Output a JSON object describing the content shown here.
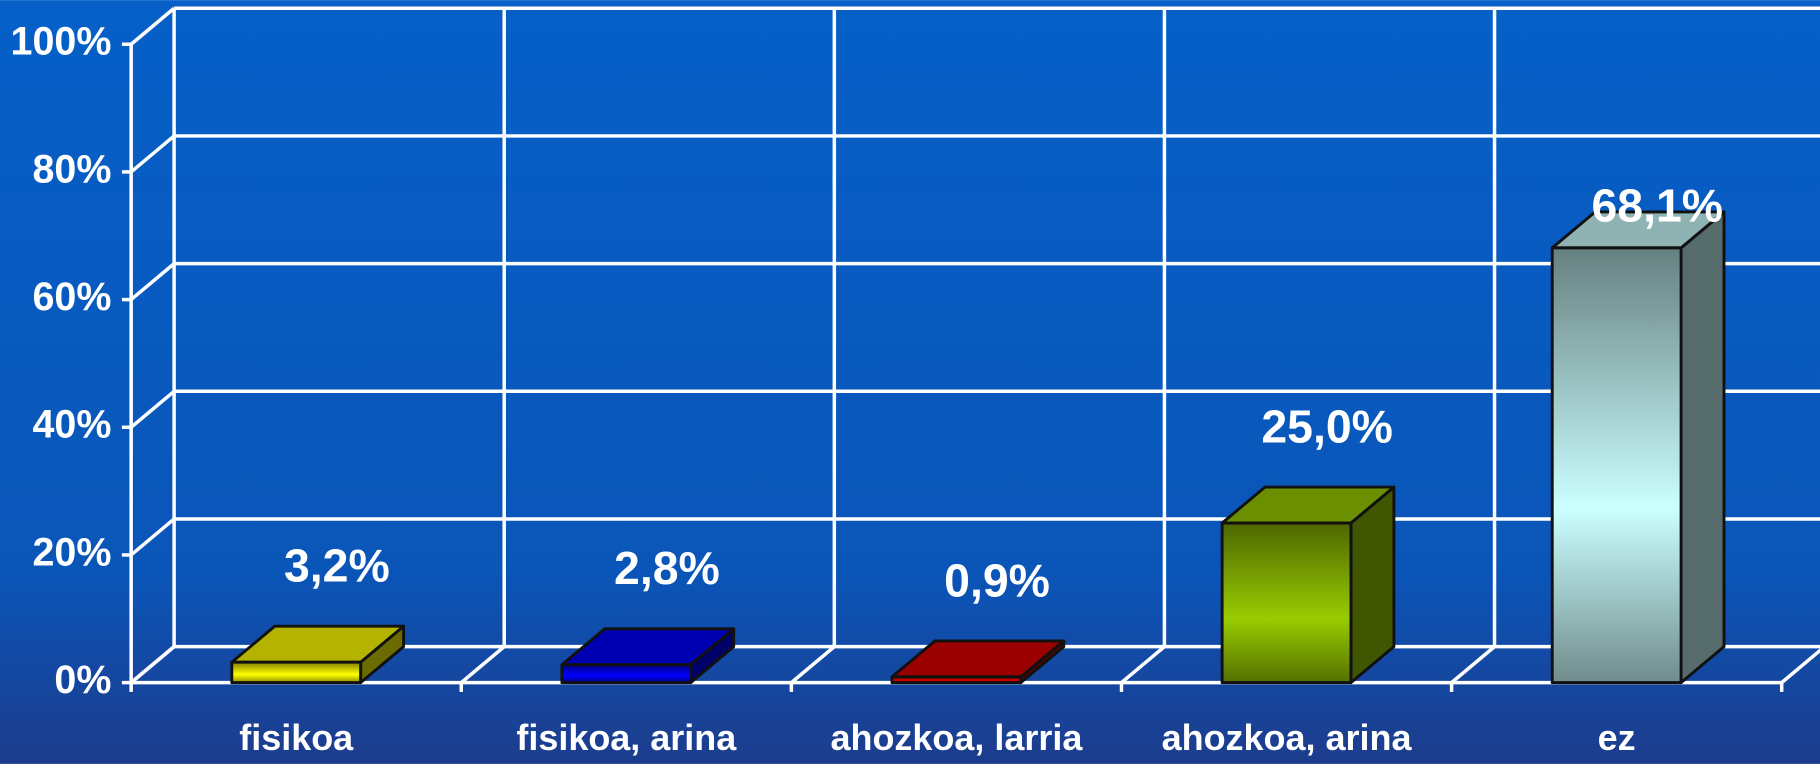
{
  "chart_data": {
    "type": "bar3d",
    "categories": [
      "fisikoa",
      "fisikoa, arina",
      "ahozkoa, larria",
      "ahozkoa, arina",
      "ez"
    ],
    "values": [
      3.2,
      2.8,
      0.9,
      25.0,
      68.1
    ],
    "value_labels": [
      "3,2%",
      "2,8%",
      "0,9%",
      "25,0%",
      "68,1%"
    ],
    "colors": [
      "#ffff00",
      "#0000ff",
      "#dd0000",
      "#99cc00",
      "#ccffff"
    ],
    "ylim": [
      0,
      100
    ],
    "yticks": [
      {
        "value": 0,
        "label": "0%"
      },
      {
        "value": 20,
        "label": "20%"
      },
      {
        "value": 40,
        "label": "40%"
      },
      {
        "value": 60,
        "label": "60%"
      },
      {
        "value": 80,
        "label": "80%"
      },
      {
        "value": 100,
        "label": "100%"
      }
    ],
    "grid": true
  }
}
